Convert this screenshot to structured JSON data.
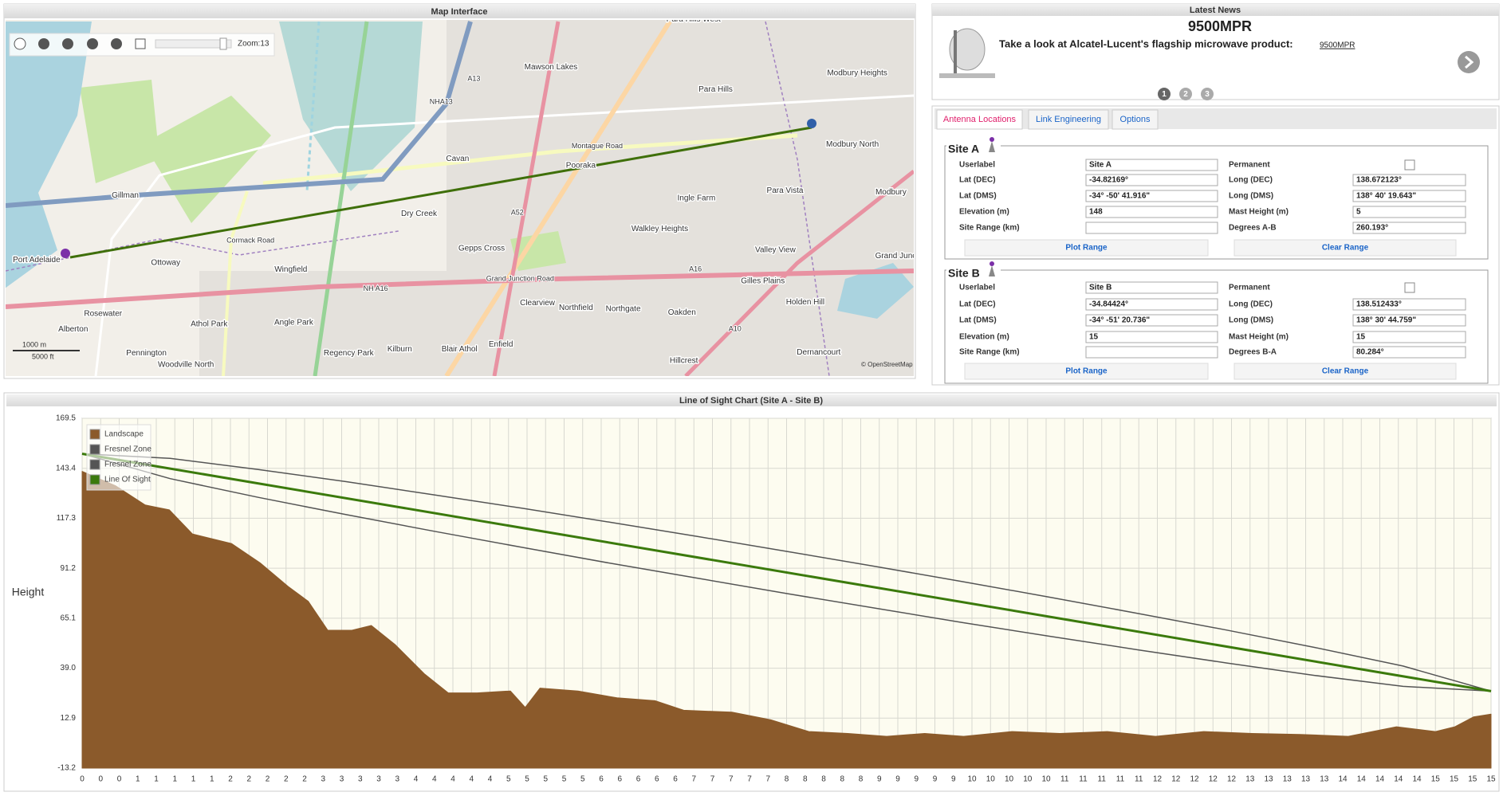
{
  "map": {
    "title": "Map Interface",
    "zoom_label": "Zoom:13",
    "places": [
      "Para Hills West",
      "Mawson Lakes",
      "Para Hills",
      "Modbury Heights",
      "Modbury North",
      "Modbury",
      "Cavan",
      "Pooraka",
      "Ingle Farm",
      "Para Vista",
      "Gillman",
      "Dry Creek",
      "Walkley Heights",
      "Valley View",
      "Port Adelaide",
      "Ottoway",
      "Wingfield",
      "Gepps Cross",
      "Gilles Plains",
      "Holden Hill",
      "Rosewater",
      "Clearview",
      "Northfield",
      "Northgate",
      "Oakden",
      "Athol Park",
      "Angle Park",
      "Alberton",
      "Kilburn",
      "Blair Athol",
      "Enfield",
      "Regency Park",
      "Pennington",
      "Woodville North",
      "Hillcrest",
      "Dernancourt",
      "Grand Junc"
    ],
    "road_labels": [
      "A13",
      "NHA13",
      "A52",
      "NH A16",
      "A16",
      "A10",
      "Montague Road",
      "Grand Junction Road",
      "Cormack Road"
    ],
    "scale": [
      "1000 m",
      "5000 ft"
    ],
    "attribution": "© OpenStreetMap"
  },
  "news": {
    "title": "Latest News",
    "headline": "9500MPR",
    "text": "Take a look at Alcatel-Lucent's flagship microwave product:",
    "link": "9500MPR",
    "pages": [
      "1",
      "2",
      "3"
    ]
  },
  "tabs": [
    "Antenna Locations",
    "Link Engineering",
    "Options"
  ],
  "sites": [
    {
      "title": "Site A",
      "rows": [
        [
          {
            "label": "Userlabel",
            "value": "Site A"
          },
          {
            "label": "Permanent",
            "checked": false
          }
        ],
        [
          {
            "label": "Lat (DEC)",
            "value": "-34.82169°"
          },
          {
            "label": "Long (DEC)",
            "value": "138.672123°"
          }
        ],
        [
          {
            "label": "Lat (DMS)",
            "value": "-34° -50' 41.916\""
          },
          {
            "label": "Long (DMS)",
            "value": "138° 40' 19.643\""
          }
        ],
        [
          {
            "label": "Elevation (m)",
            "value": "148"
          },
          {
            "label": "Mast Height (m)",
            "value": "5"
          }
        ],
        [
          {
            "label": "Site Range (km)"
          },
          {
            "label": "Degrees A-B",
            "value": "260.193°"
          }
        ]
      ],
      "buttons": [
        "Plot Range",
        "Clear Range"
      ]
    },
    {
      "title": "Site B",
      "rows": [
        [
          {
            "label": "Userlabel",
            "value": "Site B"
          },
          {
            "label": "Permanent",
            "checked": false
          }
        ],
        [
          {
            "label": "Lat (DEC)",
            "value": "-34.84424°"
          },
          {
            "label": "Long (DEC)",
            "value": "138.512433°"
          }
        ],
        [
          {
            "label": "Lat (DMS)",
            "value": "-34° -51' 20.736\""
          },
          {
            "label": "Long (DMS)",
            "value": "138° 30' 44.759\""
          }
        ],
        [
          {
            "label": "Elevation (m)",
            "value": "15"
          },
          {
            "label": "Mast Height (m)",
            "value": "15"
          }
        ],
        [
          {
            "label": "Site Range (km)"
          },
          {
            "label": "Degrees B-A",
            "value": "80.284°"
          }
        ]
      ],
      "buttons": [
        "Plot Range",
        "Clear Range"
      ]
    }
  ],
  "chart_data": {
    "type": "line",
    "title": "Line of Sight Chart (Site A - Site B)",
    "y_label": "Height",
    "ylim": [
      -13.2,
      169.5
    ],
    "yticks": [
      169.5,
      143.4,
      117.3,
      91.2,
      65.1,
      {
        "value": 39,
        "label": "39.0"
      },
      12.9,
      -13.2
    ],
    "xlim": [
      0,
      15.2
    ],
    "xticks": [
      0,
      {
        "value": 0.2,
        "label": "0"
      },
      {
        "value": 0.4,
        "label": "0"
      },
      {
        "value": 0.6,
        "label": "1"
      },
      {
        "value": 0.8,
        "label": "1"
      },
      1,
      {
        "value": 1.2,
        "label": "1"
      },
      {
        "value": 1.4,
        "label": "1"
      },
      {
        "value": 1.6,
        "label": "2"
      },
      {
        "value": 1.8,
        "label": "2"
      },
      2,
      {
        "value": 2.2,
        "label": "2"
      },
      {
        "value": 2.4,
        "label": "2"
      },
      {
        "value": 2.6,
        "label": "3"
      },
      {
        "value": 2.8,
        "label": "3"
      },
      3,
      {
        "value": 3.2,
        "label": "3"
      },
      {
        "value": 3.4,
        "label": "3"
      },
      {
        "value": 3.6,
        "label": "4"
      },
      {
        "value": 3.8,
        "label": "4"
      },
      4,
      {
        "value": 4.2,
        "label": "4"
      },
      {
        "value": 4.4,
        "label": "4"
      },
      {
        "value": 4.6,
        "label": "5"
      },
      {
        "value": 4.8,
        "label": "5"
      },
      5,
      {
        "value": 5.2,
        "label": "5"
      },
      {
        "value": 5.4,
        "label": "5"
      },
      {
        "value": 5.6,
        "label": "6"
      },
      {
        "value": 5.8,
        "label": "6"
      },
      6,
      {
        "value": 6.2,
        "label": "6"
      },
      {
        "value": 6.4,
        "label": "6"
      },
      {
        "value": 6.6,
        "label": "7"
      },
      {
        "value": 6.8,
        "label": "7"
      },
      7,
      {
        "value": 7.2,
        "label": "7"
      },
      {
        "value": 7.4,
        "label": "7"
      },
      {
        "value": 7.6,
        "label": "8"
      },
      {
        "value": 7.8,
        "label": "8"
      },
      8,
      {
        "value": 8.2,
        "label": "8"
      },
      {
        "value": 8.4,
        "label": "8"
      },
      {
        "value": 8.6,
        "label": "9"
      },
      {
        "value": 8.8,
        "label": "9"
      },
      9,
      {
        "value": 9.2,
        "label": "9"
      },
      {
        "value": 9.4,
        "label": "9"
      },
      {
        "value": 9.6,
        "label": "10"
      },
      {
        "value": 9.8,
        "label": "10"
      },
      10,
      {
        "value": 10.2,
        "label": "10"
      },
      {
        "value": 10.4,
        "label": "10"
      },
      {
        "value": 10.6,
        "label": "11"
      },
      {
        "value": 10.8,
        "label": "11"
      },
      11,
      {
        "value": 11.2,
        "label": "11"
      },
      {
        "value": 11.4,
        "label": "11"
      },
      {
        "value": 11.6,
        "label": "12"
      },
      {
        "value": 11.8,
        "label": "12"
      },
      12,
      {
        "value": 12.2,
        "label": "12"
      },
      {
        "value": 12.4,
        "label": "12"
      },
      {
        "value": 12.6,
        "label": "13"
      },
      {
        "value": 12.8,
        "label": "13"
      },
      13,
      {
        "value": 13.2,
        "label": "13"
      },
      {
        "value": 13.4,
        "label": "13"
      },
      {
        "value": 13.6,
        "label": "14"
      },
      {
        "value": 13.8,
        "label": "14"
      },
      14,
      {
        "value": 14.2,
        "label": "14"
      },
      {
        "value": 14.4,
        "label": "14"
      },
      {
        "value": 14.6,
        "label": "15"
      },
      {
        "value": 14.8,
        "label": "15"
      },
      15,
      {
        "value": 15.2,
        "label": "15"
      }
    ],
    "grid": true,
    "legend": "top-left",
    "series": [
      {
        "name": "Landscape",
        "color": "#8b5a2b",
        "area": true,
        "x": [
          0,
          0.36,
          0.68,
          0.94,
          1.19,
          1.61,
          1.92,
          2.23,
          2.44,
          2.65,
          2.91,
          3.12,
          3.38,
          3.69,
          3.95,
          4.26,
          4.62,
          4.78,
          4.94,
          5.35,
          5.77,
          6.18,
          6.49,
          7.01,
          7.43,
          7.84,
          8.26,
          8.68,
          9.09,
          9.51,
          10.03,
          10.55,
          11.06,
          11.58,
          12.1,
          12.62,
          13.14,
          13.66,
          14.18,
          14.6,
          14.81,
          15.01,
          15.2
        ],
        "values": [
          141.8,
          134.3,
          124.2,
          121.7,
          109.1,
          104.1,
          94,
          81.4,
          73.9,
          58.8,
          58.8,
          61.3,
          51.2,
          36.1,
          26.1,
          26.1,
          27.1,
          18.5,
          28.6,
          27.1,
          23.5,
          22,
          17,
          16,
          12,
          5.9,
          4.9,
          3.4,
          4.9,
          3.4,
          5.9,
          4.9,
          5.9,
          3.4,
          5.9,
          4.9,
          4.4,
          3.4,
          8.4,
          5.9,
          8.4,
          13.5,
          15
        ]
      },
      {
        "name": "Fresnel Zone",
        "color": "#555555",
        "x": [
          0,
          0.95,
          1.9,
          2.85,
          3.8,
          4.75,
          5.7,
          6.65,
          7.6,
          8.55,
          9.5,
          10.45,
          11.4,
          12.35,
          13.3,
          14.25,
          15.2
        ],
        "values": [
          151,
          148.6,
          142.8,
          136.4,
          129.5,
          122.5,
          115.2,
          107.7,
          100,
          92.2,
          84.2,
          76,
          67.5,
          58.9,
          49.8,
          40.1,
          27
        ]
      },
      {
        "name": "Fresnel Zone",
        "color": "#555555",
        "x": [
          0,
          0.95,
          1.9,
          2.85,
          3.8,
          4.75,
          5.7,
          6.65,
          7.6,
          8.55,
          9.5,
          10.45,
          11.4,
          12.35,
          13.3,
          14.25,
          15.2
        ],
        "values": [
          151,
          138,
          128.2,
          119.2,
          110.5,
          102.1,
          93.8,
          85.9,
          78,
          70.4,
          62.8,
          55.6,
          48.5,
          41.7,
          35.2,
          29.5,
          27
        ]
      },
      {
        "name": "Line Of Sight",
        "color": "#3b7a0c",
        "x": [
          0,
          15.2
        ],
        "values": [
          151,
          27
        ]
      }
    ]
  }
}
